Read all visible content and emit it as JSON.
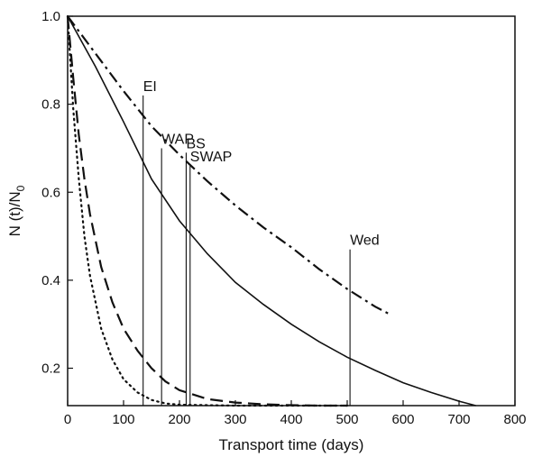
{
  "chart_data": {
    "type": "line",
    "xlabel": "Transport time (days)",
    "ylabel_main": "N (t)/N",
    "ylabel_sub": "0",
    "xlim": [
      0,
      800
    ],
    "ylim": [
      0.115,
      1.0
    ],
    "xticks": [
      0,
      100,
      200,
      300,
      400,
      500,
      600,
      700,
      800
    ],
    "yticks": [
      0.2,
      0.4,
      0.6,
      0.8,
      1.0
    ],
    "ytick_labels": [
      "0.2",
      "0.4",
      "0.6",
      "0.8",
      "1.0"
    ],
    "grid": false,
    "series": [
      {
        "style": "dotted",
        "x": [
          0,
          10,
          20,
          30,
          40,
          60,
          80,
          100,
          125,
          150,
          175,
          200,
          250,
          300,
          350,
          400,
          450,
          500
        ],
        "y": [
          1.0,
          0.79,
          0.63,
          0.5,
          0.41,
          0.29,
          0.22,
          0.175,
          0.145,
          0.128,
          0.12,
          0.117,
          0.116,
          0.115,
          0.115,
          0.115,
          0.115,
          0.115
        ]
      },
      {
        "style": "dashed",
        "x": [
          0,
          10,
          20,
          30,
          40,
          60,
          80,
          100,
          125,
          150,
          175,
          200,
          250,
          300,
          350,
          400,
          450,
          500
        ],
        "y": [
          1.0,
          0.86,
          0.73,
          0.63,
          0.55,
          0.43,
          0.35,
          0.29,
          0.24,
          0.2,
          0.17,
          0.15,
          0.13,
          0.122,
          0.118,
          0.116,
          0.115,
          0.115
        ]
      },
      {
        "style": "solid",
        "x": [
          0,
          50,
          100,
          150,
          200,
          250,
          300,
          350,
          400,
          450,
          500,
          550,
          600,
          650,
          700,
          730
        ],
        "y": [
          1.0,
          0.885,
          0.76,
          0.63,
          0.535,
          0.46,
          0.395,
          0.345,
          0.3,
          0.26,
          0.225,
          0.195,
          0.167,
          0.145,
          0.125,
          0.115
        ]
      },
      {
        "style": "dashdot",
        "x": [
          0,
          50,
          100,
          150,
          200,
          250,
          300,
          350,
          400,
          450,
          500,
          550,
          580
        ],
        "y": [
          1.0,
          0.915,
          0.83,
          0.75,
          0.685,
          0.625,
          0.57,
          0.52,
          0.475,
          0.425,
          0.38,
          0.34,
          0.32
        ]
      }
    ],
    "markers": [
      {
        "label": "EI",
        "x": 135,
        "top": 0.82
      },
      {
        "label": "WAP",
        "x": 168,
        "top": 0.7
      },
      {
        "label": "BS",
        "x": 212,
        "top": 0.69
      },
      {
        "label": "SWAP",
        "x": 219,
        "top": 0.66
      },
      {
        "label": "Wed",
        "x": 505,
        "top": 0.47
      }
    ]
  }
}
